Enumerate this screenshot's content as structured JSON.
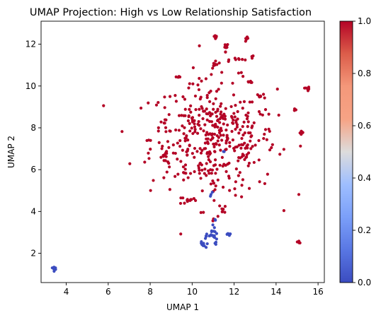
{
  "chart_data": {
    "type": "scatter",
    "title": "UMAP Projection: High vs Low Relationship Satisfaction",
    "xlabel": "UMAP 1",
    "ylabel": "UMAP 2",
    "xlim": [
      2.8,
      16.3
    ],
    "ylim": [
      0.6,
      13.1
    ],
    "xticks": [
      "4",
      "6",
      "8",
      "10",
      "12",
      "14",
      "16"
    ],
    "xtick_values": [
      4,
      6,
      8,
      10,
      12,
      14,
      16
    ],
    "yticks": [
      "2",
      "4",
      "6",
      "8",
      "10",
      "12"
    ],
    "ytick_values": [
      2,
      4,
      6,
      8,
      10,
      12
    ],
    "grid": false,
    "colormap": "coolwarm",
    "colorbar": {
      "ticks": [
        "0.0",
        "0.2",
        "0.4",
        "0.6",
        "0.8",
        "1.0"
      ],
      "tick_values": [
        0.0,
        0.2,
        0.4,
        0.6,
        0.8,
        1.0
      ],
      "range": [
        0.0,
        1.0
      ]
    },
    "colors": {
      "high": "#b40426",
      "low": "#3b4cc0"
    },
    "series": [
      {
        "label_value": 1,
        "clusters": [
          {
            "cx": 11.0,
            "cy": 7.5,
            "sx": 1.5,
            "sy": 1.35,
            "n": 420
          },
          {
            "cx": 11.1,
            "cy": 12.4,
            "sx": 0.05,
            "sy": 0.08,
            "n": 6
          },
          {
            "cx": 11.6,
            "cy": 11.7,
            "sx": 0.06,
            "sy": 0.2,
            "n": 8
          },
          {
            "cx": 12.6,
            "cy": 12.2,
            "sx": 0.07,
            "sy": 0.06,
            "n": 6
          },
          {
            "cx": 12.3,
            "cy": 11.3,
            "sx": 0.25,
            "sy": 0.05,
            "n": 8
          },
          {
            "cx": 11.1,
            "cy": 11.0,
            "sx": 0.08,
            "sy": 0.15,
            "n": 8
          },
          {
            "cx": 12.8,
            "cy": 10.2,
            "sx": 0.12,
            "sy": 0.05,
            "n": 5
          },
          {
            "cx": 12.9,
            "cy": 11.4,
            "sx": 0.04,
            "sy": 0.04,
            "n": 3
          },
          {
            "cx": 15.5,
            "cy": 9.85,
            "sx": 0.05,
            "sy": 0.05,
            "n": 6
          },
          {
            "cx": 14.9,
            "cy": 8.9,
            "sx": 0.03,
            "sy": 0.05,
            "n": 3
          },
          {
            "cx": 15.2,
            "cy": 7.8,
            "sx": 0.06,
            "sy": 0.08,
            "n": 6
          },
          {
            "cx": 15.1,
            "cy": 2.55,
            "sx": 0.04,
            "sy": 0.03,
            "n": 5
          },
          {
            "cx": 8.7,
            "cy": 8.3,
            "sx": 0.04,
            "sy": 0.06,
            "n": 4
          },
          {
            "cx": 8.8,
            "cy": 6.7,
            "sx": 0.15,
            "sy": 0.15,
            "n": 7
          },
          {
            "cx": 9.4,
            "cy": 10.5,
            "sx": 0.04,
            "sy": 0.04,
            "n": 3
          },
          {
            "cx": 9.9,
            "cy": 4.5,
            "sx": 0.2,
            "sy": 0.05,
            "n": 8
          },
          {
            "cx": 11.4,
            "cy": 4.1,
            "sx": 0.12,
            "sy": 0.25,
            "n": 8
          },
          {
            "cx": 11.0,
            "cy": 3.6,
            "sx": 0.04,
            "sy": 0.04,
            "n": 3
          },
          {
            "cx": 11.0,
            "cy": 5.2,
            "sx": 0.08,
            "sy": 0.1,
            "n": 5
          }
        ]
      },
      {
        "label_value": 0,
        "clusters": [
          {
            "cx": 3.45,
            "cy": 1.3,
            "sx": 0.05,
            "sy": 0.04,
            "n": 8
          },
          {
            "cx": 10.5,
            "cy": 2.4,
            "sx": 0.07,
            "sy": 0.07,
            "n": 9
          },
          {
            "cx": 10.8,
            "cy": 2.8,
            "sx": 0.2,
            "sy": 0.08,
            "n": 10
          },
          {
            "cx": 11.0,
            "cy": 3.1,
            "sx": 0.1,
            "sy": 0.15,
            "n": 8
          },
          {
            "cx": 11.1,
            "cy": 2.65,
            "sx": 0.05,
            "sy": 0.1,
            "n": 5
          },
          {
            "cx": 11.7,
            "cy": 2.9,
            "sx": 0.05,
            "sy": 0.06,
            "n": 6
          },
          {
            "cx": 11.1,
            "cy": 3.6,
            "sx": 0.03,
            "sy": 0.03,
            "n": 2
          },
          {
            "cx": 10.9,
            "cy": 4.8,
            "sx": 0.03,
            "sy": 0.06,
            "n": 3
          },
          {
            "cx": 11.5,
            "cy": 6.9,
            "sx": 0.05,
            "sy": 0.05,
            "n": 2
          }
        ]
      }
    ]
  }
}
